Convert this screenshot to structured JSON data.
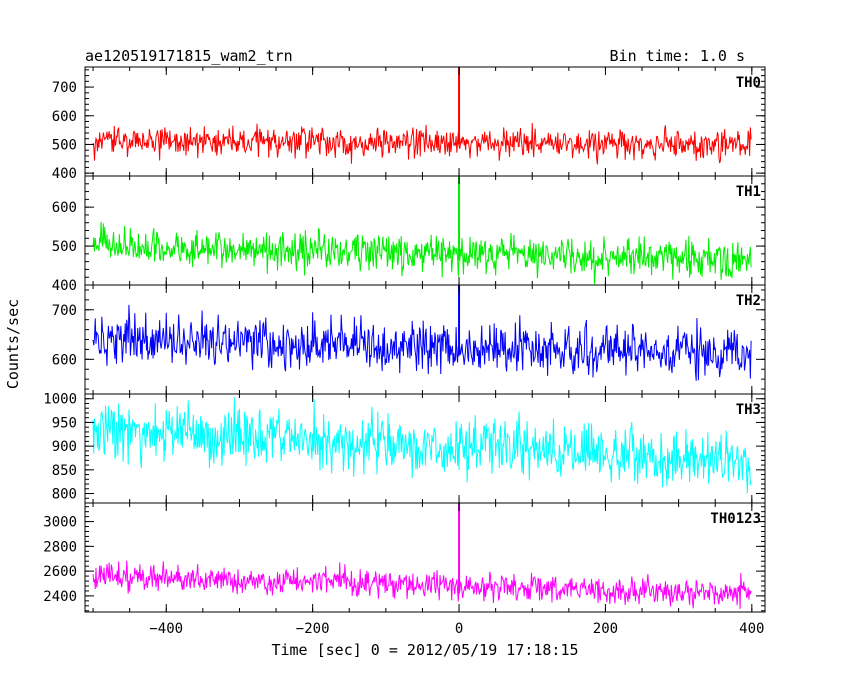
{
  "header": {
    "title": "ae120519171815_wam2_trn",
    "bin_time": "Bin time: 1.0 s"
  },
  "chart_data": {
    "type": "line",
    "xlabel": "Time [sec] 0 = 2012/05/19 17:18:15",
    "ylabel": "Counts/sec",
    "xlim": [
      -511,
      418
    ],
    "x_ticks": [
      -400,
      -200,
      0,
      200,
      400
    ],
    "x_tick_labels": [
      "−400",
      "−200",
      "0",
      "200",
      "400"
    ],
    "grid": false,
    "legend": "none",
    "panels": [
      {
        "name": "TH0",
        "color": "#ff0000",
        "ylim": [
          390,
          770
        ],
        "y_ticks": [
          400,
          500,
          600,
          700
        ],
        "y_tick_labels": [
          "400",
          "500",
          "600",
          "700"
        ],
        "baseline_start": 510,
        "baseline_end": 500,
        "noise": 25,
        "spikes": [
          {
            "x": 0,
            "y": 770
          }
        ]
      },
      {
        "name": "TH1",
        "color": "#00ee00",
        "ylim": [
          400,
          680
        ],
        "y_ticks": [
          400,
          500,
          600
        ],
        "y_tick_labels": [
          "400",
          "500",
          "600"
        ],
        "baseline_start": 495,
        "baseline_end": 465,
        "noise": 24,
        "spikes": [
          {
            "x": 0,
            "y": 680
          }
        ]
      },
      {
        "name": "TH2",
        "color": "#0000ff",
        "ylim": [
          530,
          750
        ],
        "y_ticks": [
          600,
          700
        ],
        "y_tick_labels": [
          "600",
          "700"
        ],
        "baseline_start": 640,
        "baseline_end": 610,
        "noise": 27,
        "spikes": [
          {
            "x": 0,
            "y": 750
          }
        ]
      },
      {
        "name": "TH3",
        "color": "#00ffff",
        "ylim": [
          780,
          1010
        ],
        "y_ticks": [
          800,
          850,
          900,
          950,
          1000
        ],
        "y_tick_labels": [
          "800",
          "850",
          "900",
          "950",
          "1000"
        ],
        "baseline_start": 935,
        "baseline_end": 870,
        "noise": 30,
        "spikes": []
      },
      {
        "name": "TH0123",
        "color": "#ff00ff",
        "ylim": [
          2270,
          3150
        ],
        "y_ticks": [
          2400,
          2600,
          2800,
          3000
        ],
        "y_tick_labels": [
          "2400",
          "2600",
          "2800",
          "3000"
        ],
        "baseline_start": 2560,
        "baseline_end": 2420,
        "noise": 55,
        "spikes": [
          {
            "x": 0,
            "y": 3150
          }
        ]
      }
    ]
  }
}
